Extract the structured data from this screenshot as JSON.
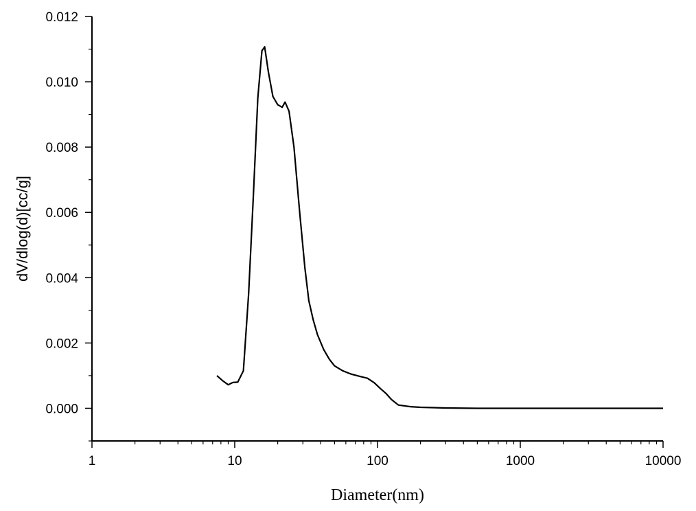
{
  "chart_data": {
    "type": "line",
    "title": "",
    "xlabel": "Diameter(nm)",
    "ylabel": "dV/dlog(d)[cc/g]",
    "xscale": "log",
    "xlim": [
      1,
      10000
    ],
    "ylim": [
      -0.001,
      0.012
    ],
    "xticks": [
      1,
      10,
      100,
      1000,
      10000
    ],
    "xtick_labels": [
      "1",
      "10",
      "100",
      "1000",
      "10000"
    ],
    "yticks": [
      0.0,
      0.002,
      0.004,
      0.006,
      0.008,
      0.01,
      0.012
    ],
    "ytick_labels": [
      "0.000",
      "0.002",
      "0.004",
      "0.006",
      "0.008",
      "0.010",
      "0.012"
    ],
    "grid": false,
    "legend": "none",
    "line_color": "#000000",
    "series": [
      {
        "x": [
          7.5,
          8.2,
          9.0,
          9.7,
          10.5,
          11.5,
          12.5,
          13.5,
          14.5,
          15.5,
          16.2,
          17.2,
          18.5,
          20.0,
          21.5,
          22.5,
          24.0,
          26.0,
          28.5,
          31.0,
          33.0,
          35.5,
          38.0,
          42.0,
          46.0,
          50.0,
          57.0,
          65.0,
          75.0,
          85.0,
          95.0,
          105.0,
          115.0,
          125.0,
          140.0,
          170.0,
          200.0,
          300.0,
          500.0,
          1000.0,
          3000.0,
          10000.0
        ],
        "y": [
          0.001,
          0.00085,
          0.00072,
          0.00079,
          0.0008,
          0.00115,
          0.0035,
          0.0065,
          0.0095,
          0.01095,
          0.01107,
          0.0103,
          0.00955,
          0.0093,
          0.00922,
          0.00938,
          0.0091,
          0.008,
          0.006,
          0.0043,
          0.0033,
          0.0027,
          0.00225,
          0.0018,
          0.0015,
          0.0013,
          0.00115,
          0.00105,
          0.00098,
          0.00092,
          0.00078,
          0.0006,
          0.00045,
          0.00027,
          0.0001,
          5e-05,
          3e-05,
          1e-05,
          0.0,
          0.0,
          0.0,
          0.0
        ]
      }
    ]
  }
}
